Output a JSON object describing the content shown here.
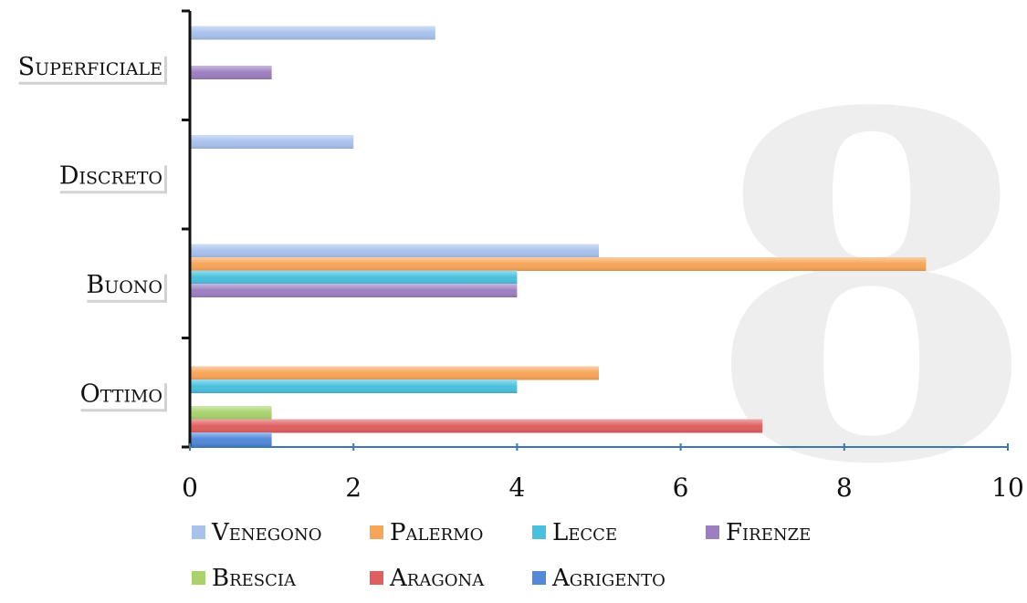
{
  "chart_data": {
    "type": "bar",
    "orientation": "horizontal",
    "categories": [
      "Ottimo",
      "Buono",
      "Discreto",
      "Superficiale"
    ],
    "series": [
      {
        "name": "Venegono",
        "color": "#a9c2ec",
        "values": [
          0,
          5,
          2,
          3
        ]
      },
      {
        "name": "Palermo",
        "color": "#f7a559",
        "values": [
          5,
          9,
          0,
          0
        ]
      },
      {
        "name": "Lecce",
        "color": "#49c0de",
        "values": [
          4,
          4,
          0,
          0
        ]
      },
      {
        "name": "Firenze",
        "color": "#9d7fc1",
        "values": [
          0,
          4,
          0,
          1
        ]
      },
      {
        "name": "Brescia",
        "color": "#a9d26d",
        "values": [
          1,
          0,
          0,
          0
        ]
      },
      {
        "name": "Aragona",
        "color": "#df5f5f",
        "values": [
          7,
          0,
          0,
          0
        ]
      },
      {
        "name": "Agrigento",
        "color": "#5289d9",
        "values": [
          1,
          0,
          0,
          0
        ]
      }
    ],
    "x_ticks": [
      "0",
      "2",
      "4",
      "6",
      "8",
      "10"
    ],
    "xlim": [
      0,
      10
    ],
    "legend_position": "bottom",
    "grid": false,
    "axis_color": "#3e78b0",
    "watermark_text": "8",
    "watermark_color": "#eeeeee"
  }
}
